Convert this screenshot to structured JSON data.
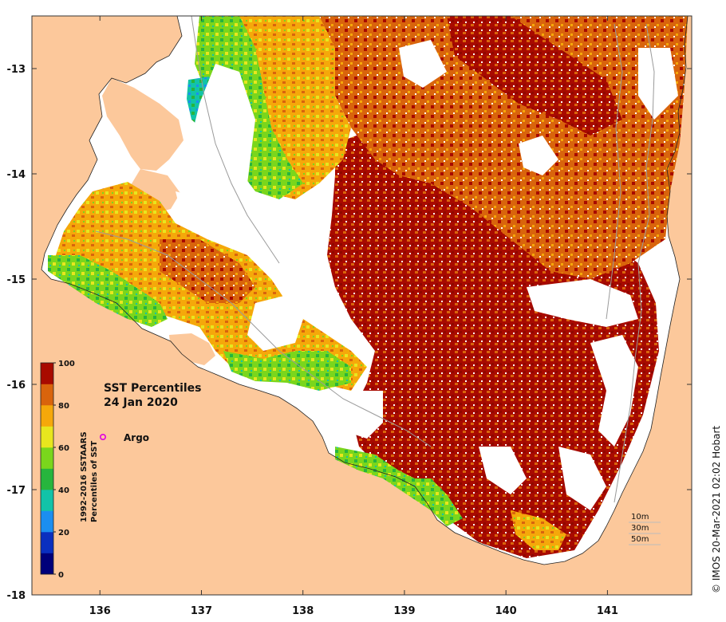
{
  "title": "SST Percentiles",
  "date": "24 Jan 2020",
  "credit": "© IMOS 20-Mar-2021 02:02 Hobart",
  "argo_label": "Argo",
  "colorbar": {
    "title_line1": "1992-2016 SSTAARS",
    "title_line2": "Percentiles of SST",
    "ticks": [
      "0",
      "20",
      "40",
      "60",
      "80",
      "100"
    ],
    "colors": [
      "#00007a",
      "#0a2fbf",
      "#1b8ef0",
      "#12c3a8",
      "#27b53d",
      "#7ad61c",
      "#e8e61e",
      "#f5a80a",
      "#d9640c",
      "#a80a00"
    ]
  },
  "isobaths": [
    "10m",
    "30m",
    "50m"
  ],
  "x_axis": {
    "ticks": [
      "136",
      "137",
      "138",
      "139",
      "140",
      "141"
    ],
    "values": [
      136,
      137,
      138,
      139,
      140,
      141
    ],
    "range": [
      135.33,
      141.83
    ]
  },
  "y_axis": {
    "ticks": [
      "-13",
      "-14",
      "-15",
      "-16",
      "-17",
      "-18"
    ],
    "values": [
      -13,
      -14,
      -15,
      -16,
      -17,
      -18
    ],
    "range": [
      -18.0,
      -12.5
    ]
  },
  "colors": {
    "land": "#fcc89b",
    "sea_nodata": "#ffffff",
    "frame": "#333333"
  }
}
